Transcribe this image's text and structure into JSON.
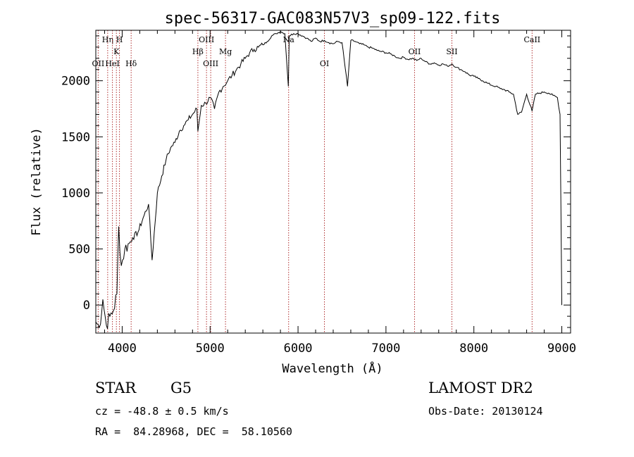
{
  "chart_data": {
    "type": "line",
    "title": "spec-56317-GAC083N57V3_sp09-122.fits",
    "xlabel": "Wavelength (Å)",
    "ylabel": "Flux (relative)",
    "xlim": [
      3700,
      9100
    ],
    "ylim": [
      -250,
      2450
    ],
    "x_ticks": [
      4000,
      5000,
      6000,
      7000,
      8000,
      9000
    ],
    "y_ticks": [
      0,
      500,
      1000,
      1500,
      2000
    ],
    "grid": false,
    "series": [
      {
        "x": [
          3700,
          3740,
          3780,
          3820,
          3860,
          3900,
          3940,
          3960,
          3990,
          4030,
          4080,
          4120,
          4180,
          4250,
          4300,
          4340,
          4400,
          4450,
          4500,
          4550,
          4600,
          4650,
          4700,
          4750,
          4800,
          4850,
          4861,
          4900,
          4950,
          5000,
          5050,
          5100,
          5150,
          5200,
          5250,
          5300,
          5350,
          5400,
          5450,
          5500,
          5550,
          5600,
          5650,
          5700,
          5750,
          5800,
          5850,
          5890,
          5900,
          5950,
          6000,
          6050,
          6100,
          6150,
          6200,
          6250,
          6300,
          6350,
          6400,
          6450,
          6500,
          6563,
          6600,
          6650,
          6700,
          6750,
          6800,
          6850,
          6900,
          6950,
          7000,
          7050,
          7100,
          7150,
          7200,
          7250,
          7300,
          7350,
          7400,
          7450,
          7500,
          7550,
          7600,
          7650,
          7700,
          7750,
          7800,
          7850,
          7900,
          7950,
          8000,
          8050,
          8100,
          8150,
          8200,
          8250,
          8300,
          8350,
          8400,
          8450,
          8498,
          8542,
          8600,
          8662,
          8700,
          8750,
          8800,
          8850,
          8900,
          8950,
          8980,
          9000
        ],
        "y": [
          -150,
          -200,
          50,
          -180,
          -100,
          -50,
          100,
          700,
          350,
          500,
          550,
          600,
          650,
          800,
          900,
          400,
          1000,
          1150,
          1300,
          1400,
          1450,
          1550,
          1600,
          1650,
          1700,
          1750,
          1550,
          1780,
          1800,
          1850,
          1750,
          1900,
          1950,
          2000,
          2050,
          2100,
          2150,
          2200,
          2250,
          2280,
          2300,
          2320,
          2350,
          2400,
          2420,
          2440,
          2420,
          1950,
          2400,
          2420,
          2420,
          2400,
          2380,
          2350,
          2380,
          2350,
          2360,
          2340,
          2330,
          2350,
          2340,
          1950,
          2360,
          2350,
          2330,
          2320,
          2300,
          2290,
          2270,
          2260,
          2250,
          2240,
          2220,
          2200,
          2210,
          2190,
          2200,
          2180,
          2200,
          2170,
          2150,
          2160,
          2140,
          2150,
          2130,
          2150,
          2120,
          2100,
          2080,
          2050,
          2040,
          2020,
          2000,
          1980,
          1960,
          1950,
          1930,
          1920,
          1900,
          1880,
          1700,
          1720,
          1880,
          1730,
          1880,
          1890,
          1900,
          1890,
          1870,
          1850,
          1700,
          0
        ]
      }
    ],
    "lines": [
      {
        "label": "OII",
        "x": 3727,
        "row": 3
      },
      {
        "label": "Hη",
        "x": 3835,
        "row": 1
      },
      {
        "label": "K",
        "x": 3934,
        "row": 2
      },
      {
        "label": "HeI",
        "x": 3889,
        "row": 3
      },
      {
        "label": "H",
        "x": 3969,
        "row": 1
      },
      {
        "label": "Hδ",
        "x": 4102,
        "row": 3
      },
      {
        "label": "Hβ",
        "x": 4861,
        "row": 2
      },
      {
        "label": "OIII",
        "x": 4959,
        "row": 1
      },
      {
        "label": "OIII",
        "x": 5007,
        "row": 3
      },
      {
        "label": "Mg",
        "x": 5175,
        "row": 2
      },
      {
        "label": "Na",
        "x": 5893,
        "row": 1
      },
      {
        "label": "OI",
        "x": 6300,
        "row": 3
      },
      {
        "label": "OII",
        "x": 7325,
        "row": 2
      },
      {
        "label": "SII",
        "x": 7750,
        "row": 2
      },
      {
        "label": "CaII",
        "x": 8662,
        "row": 1
      }
    ]
  },
  "info": {
    "object_class": "STAR",
    "subclass": "G5",
    "survey": "LAMOST DR2",
    "cz": "cz = -48.8 ± 0.5 km/s",
    "obs_date": "Obs-Date: 20130124",
    "coords": "RA =  84.28968, DEC =  58.10560"
  }
}
